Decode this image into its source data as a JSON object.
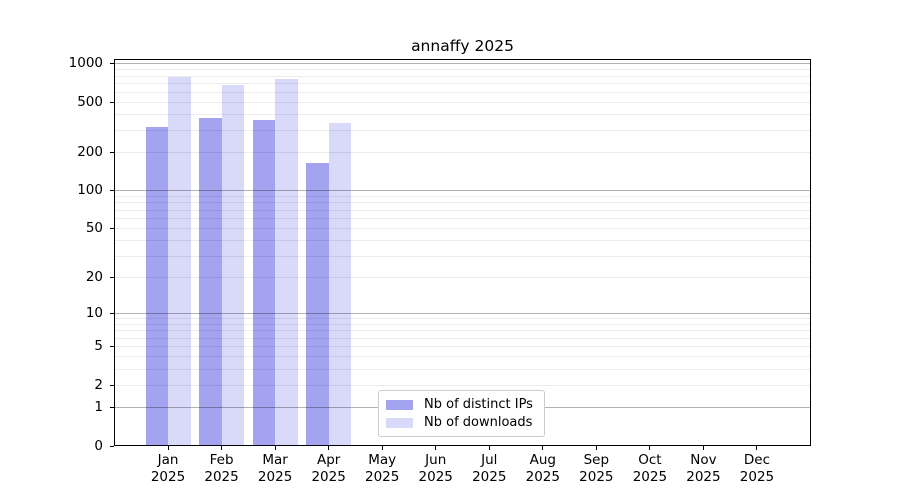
{
  "chart_data": {
    "type": "bar",
    "title": "annaffy 2025",
    "categories": [
      "Jan 2025",
      "Feb 2025",
      "Mar 2025",
      "Apr 2025",
      "May 2025",
      "Jun 2025",
      "Jul 2025",
      "Aug 2025",
      "Sep 2025",
      "Oct 2025",
      "Nov 2025",
      "Dec 2025"
    ],
    "month_labels": [
      "Jan",
      "Feb",
      "Mar",
      "Apr",
      "May",
      "Jun",
      "Jul",
      "Aug",
      "Sep",
      "Oct",
      "Nov",
      "Dec"
    ],
    "year_label": "2025",
    "series": [
      {
        "name": "Nb of distinct IPs",
        "color": "#a3a3f0",
        "values": [
          315,
          370,
          362,
          163,
          null,
          null,
          null,
          null,
          null,
          null,
          null,
          null
        ]
      },
      {
        "name": "Nb of downloads",
        "color": "#d9d9f9",
        "values": [
          779,
          680,
          757,
          341,
          null,
          null,
          null,
          null,
          null,
          null,
          null,
          null
        ]
      }
    ],
    "yscale": "log1p",
    "yticks": [
      0,
      1,
      2,
      5,
      10,
      20,
      50,
      100,
      200,
      500,
      1000
    ],
    "ylim": [
      0,
      1000
    ],
    "grid": true,
    "legend_position": "lower center",
    "colors": {
      "major_grid": "#b3b3b3",
      "minor_grid": "#ebebeb",
      "axis": "#000000"
    }
  }
}
